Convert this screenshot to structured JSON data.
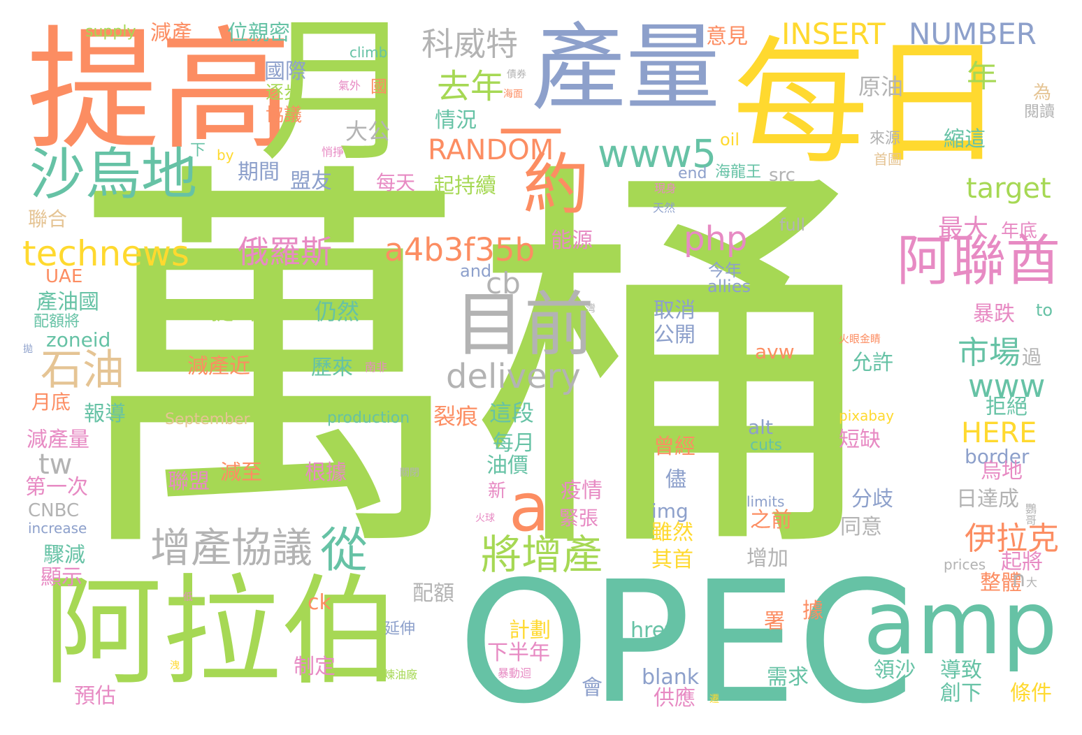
{
  "palette": {
    "green": "#a6d854",
    "teal": "#66c2a5",
    "orange": "#fc8d62",
    "blue": "#8da0cb",
    "pink": "#e78ac3",
    "yellow": "#ffd92f",
    "tan": "#e5c494",
    "gray": "#b3b3b3"
  },
  "words": [
    {
      "text": "萬桶",
      "color": "green"
    },
    {
      "text": "OPEC",
      "color": "teal"
    },
    {
      "text": "每日",
      "color": "yellow"
    },
    {
      "text": "提高",
      "color": "orange"
    },
    {
      "text": "月",
      "color": "green"
    },
    {
      "text": "產量",
      "color": "blue"
    },
    {
      "text": "阿拉伯",
      "color": "green"
    },
    {
      "text": "amp",
      "color": "teal"
    },
    {
      "text": "沙烏地",
      "color": "teal"
    },
    {
      "text": "約",
      "color": "orange"
    },
    {
      "text": "目前",
      "color": "gray"
    },
    {
      "text": "阿聯酋",
      "color": "pink"
    },
    {
      "text": "a",
      "color": "orange"
    },
    {
      "text": "增產協議",
      "color": "gray"
    },
    {
      "text": "將增產",
      "color": "green"
    },
    {
      "text": "從",
      "color": "teal"
    },
    {
      "text": "石油",
      "color": "tan"
    },
    {
      "text": "delivery",
      "color": "gray"
    },
    {
      "text": "www5",
      "color": "teal"
    },
    {
      "text": "technews",
      "color": "yellow"
    },
    {
      "text": "a4b3f35b",
      "color": "orange"
    },
    {
      "text": "INSERT",
      "color": "yellow"
    },
    {
      "text": "NUMBER",
      "color": "blue"
    },
    {
      "text": "科威特",
      "color": "gray"
    },
    {
      "text": "RANDOM",
      "color": "orange"
    },
    {
      "text": "php",
      "color": "pink"
    },
    {
      "text": "俄羅斯",
      "color": "pink"
    },
    {
      "text": "市場",
      "color": "teal"
    },
    {
      "text": "去年",
      "color": "green"
    },
    {
      "text": "www",
      "color": "teal"
    },
    {
      "text": "伊拉克",
      "color": "orange"
    },
    {
      "text": "target",
      "color": "green"
    },
    {
      "text": "cb",
      "color": "gray"
    },
    {
      "text": "tw",
      "color": "gray"
    },
    {
      "text": "年",
      "color": "green"
    },
    {
      "text": "最大",
      "color": "pink"
    },
    {
      "text": "HERE",
      "color": "yellow"
    },
    {
      "text": "原油",
      "color": "gray"
    },
    {
      "text": "大公",
      "color": "gray"
    },
    {
      "text": "減產",
      "color": "orange"
    },
    {
      "text": "位親密",
      "color": "teal"
    },
    {
      "text": "supply",
      "color": "green"
    },
    {
      "text": "意見",
      "color": "orange"
    },
    {
      "text": "climb",
      "color": "teal"
    },
    {
      "text": "國際",
      "color": "blue"
    },
    {
      "text": "逐步",
      "color": "green"
    },
    {
      "text": "協議",
      "color": "orange"
    },
    {
      "text": "債券",
      "color": "gray"
    },
    {
      "text": "海面",
      "color": "orange"
    },
    {
      "text": "氣外",
      "color": "pink"
    },
    {
      "text": "國",
      "color": "orange"
    },
    {
      "text": "為",
      "color": "tan"
    },
    {
      "text": "閱讀",
      "color": "gray"
    },
    {
      "text": "情況",
      "color": "teal"
    },
    {
      "text": "縮這",
      "color": "teal"
    },
    {
      "text": "oil",
      "color": "yellow"
    },
    {
      "text": "來源",
      "color": "gray"
    },
    {
      "text": "首圖",
      "color": "tan"
    },
    {
      "text": "下",
      "color": "teal"
    },
    {
      "text": "by",
      "color": "yellow"
    },
    {
      "text": "悄掙",
      "color": "pink"
    },
    {
      "text": "期間",
      "color": "blue"
    },
    {
      "text": "盟友",
      "color": "blue"
    },
    {
      "text": "每天",
      "color": "pink"
    },
    {
      "text": "起持續",
      "color": "green"
    },
    {
      "text": "end",
      "color": "blue"
    },
    {
      "text": "海龍王",
      "color": "teal"
    },
    {
      "text": "src",
      "color": "gray"
    },
    {
      "text": "現身",
      "color": "pink"
    },
    {
      "text": "天然",
      "color": "blue"
    },
    {
      "text": "聯合",
      "color": "tan"
    },
    {
      "text": "full",
      "color": "gray"
    },
    {
      "text": "年底",
      "color": "pink"
    },
    {
      "text": "能源",
      "color": "pink"
    },
    {
      "text": "UAE",
      "color": "orange"
    },
    {
      "text": "and",
      "color": "blue"
    },
    {
      "text": "今年",
      "color": "blue"
    },
    {
      "text": "allies",
      "color": "blue"
    },
    {
      "text": "產油國",
      "color": "teal"
    },
    {
      "text": "配額將",
      "color": "teal"
    },
    {
      "text": "提出",
      "color": "green"
    },
    {
      "text": "仍然",
      "color": "teal"
    },
    {
      "text": "取消",
      "color": "blue"
    },
    {
      "text": "公開",
      "color": "blue"
    },
    {
      "text": "暴跌",
      "color": "pink"
    },
    {
      "text": "to",
      "color": "teal"
    },
    {
      "text": "zoneid",
      "color": "teal"
    },
    {
      "text": "avw",
      "color": "orange"
    },
    {
      "text": "火眼金睛",
      "color": "orange"
    },
    {
      "text": "過",
      "color": "gray"
    },
    {
      "text": "減產近",
      "color": "orange"
    },
    {
      "text": "歷來",
      "color": "teal"
    },
    {
      "text": "南非",
      "color": "pink"
    },
    {
      "text": "允許",
      "color": "teal"
    },
    {
      "text": "月底",
      "color": "orange"
    },
    {
      "text": "報導",
      "color": "teal"
    },
    {
      "text": "September",
      "color": "tan"
    },
    {
      "text": "production",
      "color": "teal"
    },
    {
      "text": "裂痕",
      "color": "orange"
    },
    {
      "text": "這段",
      "color": "teal"
    },
    {
      "text": "拒絕",
      "color": "teal"
    },
    {
      "text": "pixabay",
      "color": "yellow"
    },
    {
      "text": "減產量",
      "color": "pink"
    },
    {
      "text": "alt",
      "color": "blue"
    },
    {
      "text": "cuts",
      "color": "teal"
    },
    {
      "text": "曾經",
      "color": "orange"
    },
    {
      "text": "每月",
      "color": "teal"
    },
    {
      "text": "短缺",
      "color": "pink"
    },
    {
      "text": "border",
      "color": "blue"
    },
    {
      "text": "油價",
      "color": "teal"
    },
    {
      "text": "烏地",
      "color": "pink"
    },
    {
      "text": "聯盟",
      "color": "pink"
    },
    {
      "text": "減至",
      "color": "orange"
    },
    {
      "text": "根據",
      "color": "pink"
    },
    {
      "text": "關閉",
      "color": "gray"
    },
    {
      "text": "第一次",
      "color": "pink"
    },
    {
      "text": "疫情",
      "color": "pink"
    },
    {
      "text": "新",
      "color": "pink"
    },
    {
      "text": "儘",
      "color": "blue"
    },
    {
      "text": "分歧",
      "color": "blue"
    },
    {
      "text": "日達成",
      "color": "gray"
    },
    {
      "text": "CNBC",
      "color": "gray"
    },
    {
      "text": "img",
      "color": "blue"
    },
    {
      "text": "limits",
      "color": "blue"
    },
    {
      "text": "火球",
      "color": "pink"
    },
    {
      "text": "鸚哥",
      "color": "gray"
    },
    {
      "text": "increase",
      "color": "blue"
    },
    {
      "text": "緊張",
      "color": "pink"
    },
    {
      "text": "雖然",
      "color": "yellow"
    },
    {
      "text": "之前",
      "color": "orange"
    },
    {
      "text": "同意",
      "color": "gray"
    },
    {
      "text": "驟減",
      "color": "teal"
    },
    {
      "text": "其首",
      "color": "yellow"
    },
    {
      "text": "增加",
      "color": "gray"
    },
    {
      "text": "prices",
      "color": "gray"
    },
    {
      "text": "起將",
      "color": "pink"
    },
    {
      "text": "顯示",
      "color": "pink"
    },
    {
      "text": "整體",
      "color": "orange"
    },
    {
      "text": "n",
      "color": "gray"
    },
    {
      "text": "大",
      "color": "gray"
    },
    {
      "text": "配額",
      "color": "gray"
    },
    {
      "text": "低",
      "color": "pink"
    },
    {
      "text": "ck",
      "color": "orange"
    },
    {
      "text": "據",
      "color": "orange"
    },
    {
      "text": "署",
      "color": "orange"
    },
    {
      "text": "計劃",
      "color": "yellow"
    },
    {
      "text": "延伸",
      "color": "blue"
    },
    {
      "text": "href",
      "color": "teal"
    },
    {
      "text": "下半年",
      "color": "pink"
    },
    {
      "text": "洩",
      "color": "yellow"
    },
    {
      "text": "制定",
      "color": "pink"
    },
    {
      "text": "煉油廠",
      "color": "green"
    },
    {
      "text": "暴動迴",
      "color": "pink"
    },
    {
      "text": "blank",
      "color": "blue"
    },
    {
      "text": "需求",
      "color": "teal"
    },
    {
      "text": "領沙",
      "color": "teal"
    },
    {
      "text": "導致",
      "color": "teal"
    },
    {
      "text": "創下",
      "color": "teal"
    },
    {
      "text": "條件",
      "color": "yellow"
    },
    {
      "text": "預估",
      "color": "pink"
    },
    {
      "text": "會",
      "color": "blue"
    },
    {
      "text": "供應",
      "color": "pink"
    },
    {
      "text": "遷",
      "color": "yellow"
    },
    {
      "text": "灣",
      "color": "gray"
    },
    {
      "text": "拋",
      "color": "blue"
    },
    {
      "text": "—",
      "color": "orange"
    }
  ]
}
